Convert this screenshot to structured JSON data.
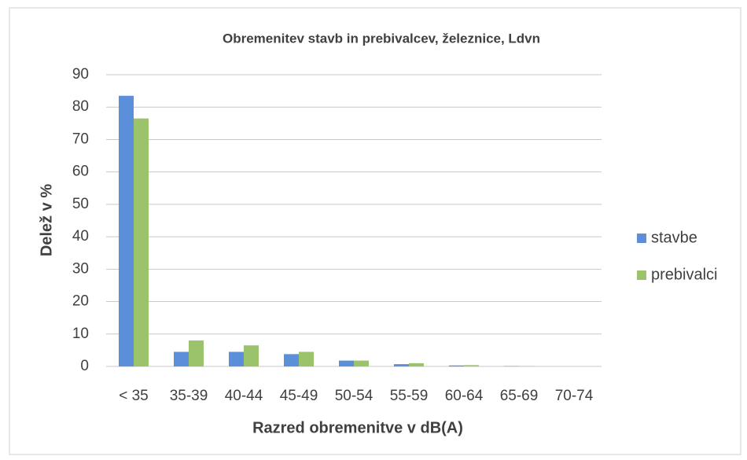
{
  "chart_data": {
    "type": "bar",
    "title": "Obremenitev stavb in prebivalcev, železnice, Ldvn",
    "x_label": "Razred obremenitve v dB(A)",
    "y_label": "Delež v %",
    "categories": [
      "< 35",
      "35-39",
      "40-44",
      "45-49",
      "50-54",
      "55-59",
      "60-64",
      "65-69",
      "70-74"
    ],
    "series": [
      {
        "name": "stavbe",
        "color": "#5b8fd9",
        "values": [
          83.5,
          4.5,
          4.5,
          3.8,
          1.8,
          0.7,
          0.3,
          0.1,
          0
        ]
      },
      {
        "name": "prebivalci",
        "color": "#9bc36b",
        "values": [
          76.5,
          8,
          6.5,
          4.5,
          1.8,
          1.0,
          0.4,
          0.1,
          0
        ]
      }
    ],
    "ylim": [
      0,
      90
    ],
    "yticks": [
      0,
      10,
      20,
      30,
      40,
      50,
      60,
      70,
      80,
      90
    ],
    "grid": true,
    "legend": "right"
  }
}
